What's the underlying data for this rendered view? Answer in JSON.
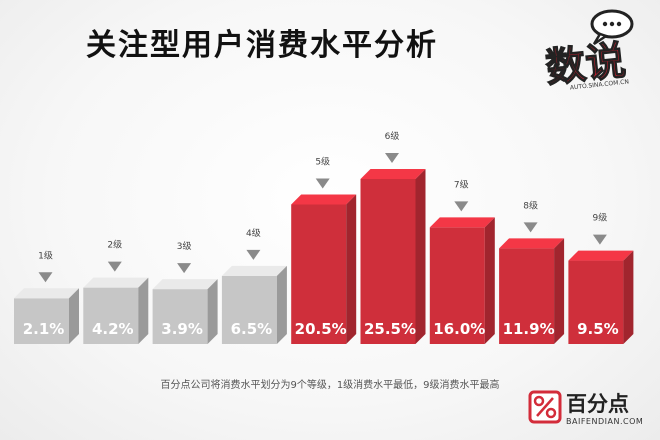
{
  "title": "关注型用户消费水平分析",
  "badge": {
    "text": "数说",
    "url": "AUTO.SINA.COM.CN"
  },
  "colors": {
    "gray": "#c6c6c6",
    "red": "#cf2f3b",
    "brand": "#d32c3a"
  },
  "chart_data": {
    "type": "bar",
    "categories": [
      "1级",
      "2级",
      "3级",
      "4级",
      "5级",
      "6级",
      "7级",
      "8级",
      "9级"
    ],
    "values": [
      2.1,
      4.2,
      3.9,
      6.5,
      20.5,
      25.5,
      16.0,
      11.9,
      9.5
    ],
    "labels": [
      "2.1%",
      "4.2%",
      "3.9%",
      "6.5%",
      "20.5%",
      "25.5%",
      "16.0%",
      "11.9%",
      "9.5%"
    ],
    "highlight": [
      false,
      false,
      false,
      false,
      true,
      true,
      true,
      true,
      true
    ],
    "ylim": [
      0,
      25.5
    ]
  },
  "footnote": "百分点公司将消费水平划分为9个等级，1级消费水平最低，9级消费水平最高",
  "brand": {
    "name": "百分点",
    "url": "BAIFENDIAN.COM"
  }
}
